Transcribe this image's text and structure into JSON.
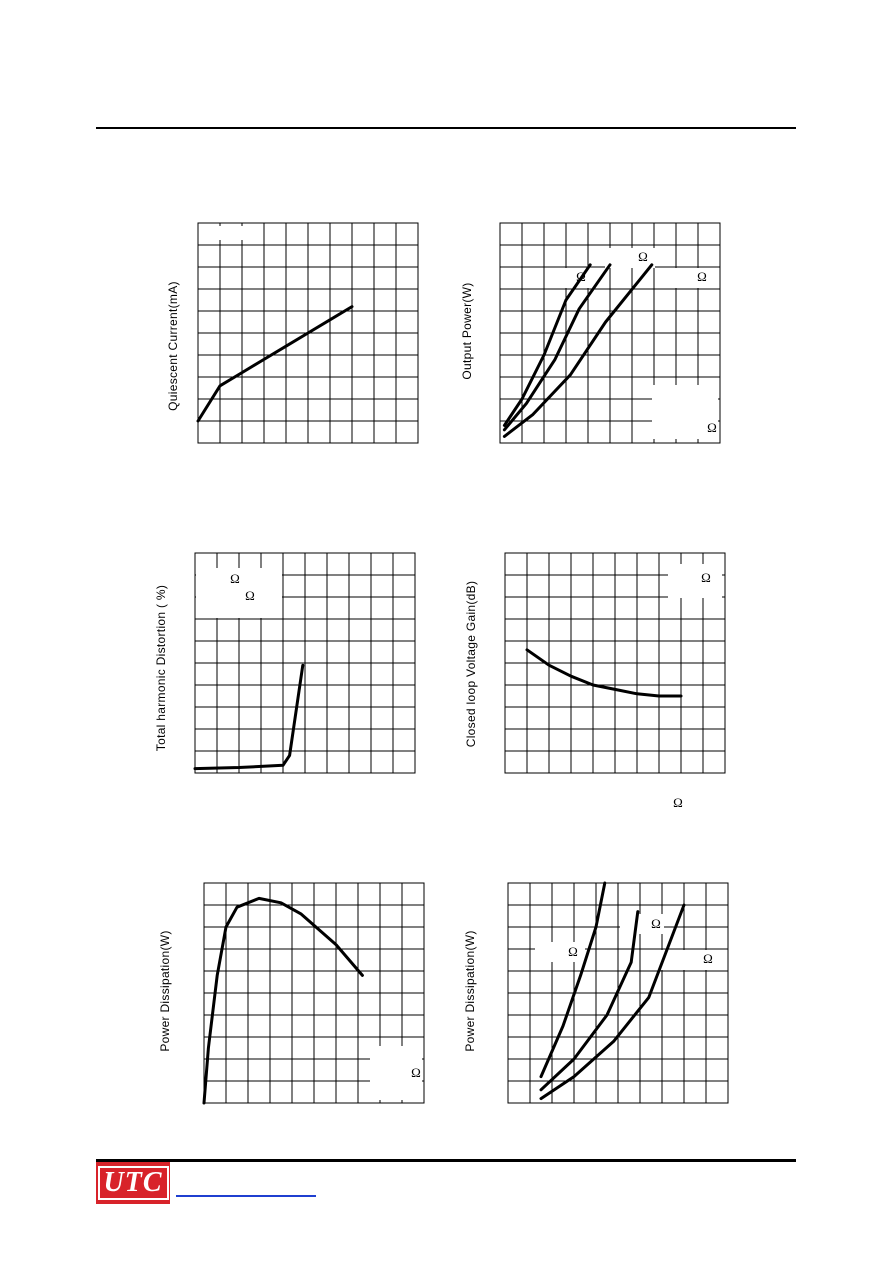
{
  "footer": {
    "logo_text": "UTC"
  },
  "omega_symbol": "Ω",
  "colors": {
    "logo_red": "#d8232a",
    "link_blue": "#1f3fd0"
  },
  "chart_data": [
    {
      "id": "quiescent-current",
      "type": "line",
      "ylabel": "Quiescent Current(mA)",
      "series": [
        {
          "x": [
            0,
            1,
            2,
            3,
            4,
            5,
            6,
            7
          ],
          "y": [
            1,
            2.6,
            3.2,
            3.8,
            4.4,
            5,
            5.6,
            6.2
          ]
        }
      ],
      "xlim": [
        0,
        10
      ],
      "ylim": [
        0,
        10
      ],
      "grid": true,
      "omega_marks": []
    },
    {
      "id": "output-power",
      "type": "line",
      "ylabel": "Output Power(W)",
      "series": [
        {
          "x": [
            0.2,
            1,
            2,
            3,
            4.1
          ],
          "y": [
            0.8,
            2,
            4,
            6.5,
            8.1
          ]
        },
        {
          "x": [
            0.2,
            1.2,
            2.5,
            3.6,
            5
          ],
          "y": [
            0.6,
            1.8,
            3.8,
            6.1,
            8.1
          ]
        },
        {
          "x": [
            0.2,
            1.5,
            3.2,
            4.8,
            6.9
          ],
          "y": [
            0.3,
            1.3,
            3.1,
            5.5,
            8.1
          ]
        }
      ],
      "xlim": [
        0,
        10
      ],
      "ylim": [
        0,
        10
      ],
      "grid": true,
      "omega_marks": [
        "Ω",
        "Ω",
        "Ω",
        "Ω"
      ]
    },
    {
      "id": "thd",
      "type": "line",
      "ylabel": "Total harmonic Distortion ( %)",
      "series": [
        {
          "x": [
            0,
            2,
            4,
            4.3,
            4.9
          ],
          "y": [
            0.2,
            0.25,
            0.35,
            0.8,
            4.9
          ]
        }
      ],
      "xlim": [
        0,
        10
      ],
      "ylim": [
        0,
        10
      ],
      "grid": true,
      "omega_marks": [
        "Ω",
        "Ω"
      ]
    },
    {
      "id": "closed-loop-gain",
      "type": "line",
      "ylabel": "Closed loop Voltage Gain(dB)",
      "series": [
        {
          "x": [
            1,
            2,
            3,
            4,
            5,
            6,
            7,
            8
          ],
          "y": [
            5.6,
            4.9,
            4.4,
            4.0,
            3.8,
            3.6,
            3.5,
            3.5
          ]
        }
      ],
      "xlim": [
        0,
        10
      ],
      "ylim": [
        0,
        10
      ],
      "grid": true,
      "omega_marks": [
        "Ω",
        "Ω"
      ]
    },
    {
      "id": "power-dissipation-1",
      "type": "line",
      "ylabel": "Power Dissipation(W)",
      "series": [
        {
          "x": [
            0,
            0.2,
            0.6,
            1,
            1.5,
            2.5,
            3.5,
            4.4,
            6,
            7.2
          ],
          "y": [
            0,
            2.5,
            5.8,
            8,
            8.9,
            9.3,
            9.1,
            8.6,
            7.2,
            5.8
          ]
        }
      ],
      "xlim": [
        0,
        10
      ],
      "ylim": [
        0,
        10
      ],
      "grid": true,
      "omega_marks": [
        "Ω"
      ]
    },
    {
      "id": "power-dissipation-2",
      "type": "line",
      "ylabel": "Power Dissipation(W)",
      "series": [
        {
          "x": [
            1.5,
            2.5,
            3.3,
            4,
            4.4
          ],
          "y": [
            1.2,
            3.5,
            5.8,
            8,
            10
          ]
        },
        {
          "x": [
            1.5,
            3,
            4.5,
            5.6,
            5.9
          ],
          "y": [
            0.6,
            2,
            4,
            6.4,
            8.7
          ]
        },
        {
          "x": [
            1.5,
            3,
            4.8,
            6.4,
            8
          ],
          "y": [
            0.2,
            1.2,
            2.8,
            4.8,
            9
          ]
        }
      ],
      "xlim": [
        0,
        10
      ],
      "ylim": [
        0,
        10
      ],
      "grid": true,
      "omega_marks": [
        "Ω",
        "Ω",
        "Ω"
      ]
    }
  ]
}
